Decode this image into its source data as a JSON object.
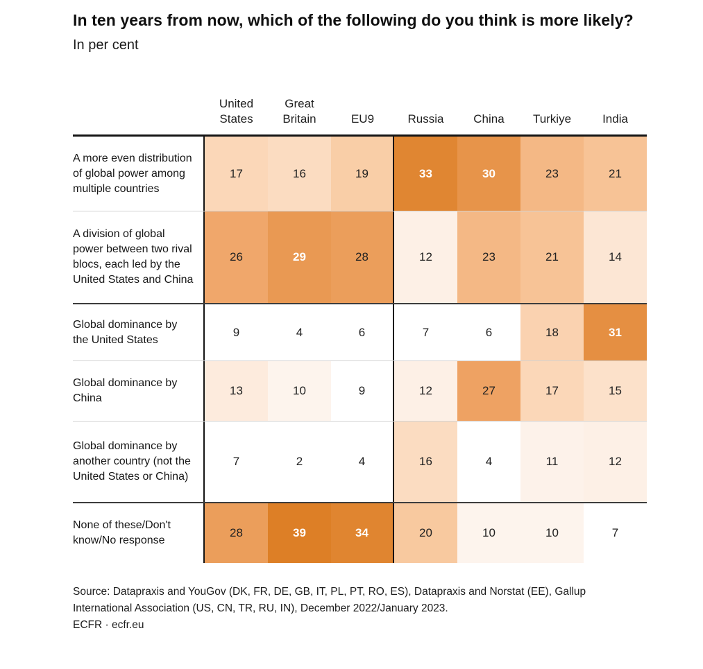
{
  "chart_data": {
    "type": "heatmap",
    "title": "In ten years from now, which of the following do you think is more likely?",
    "subtitle": "In per cent",
    "columns": [
      "United States",
      "Great Britain",
      "EU9",
      "Russia",
      "China",
      "Turkiye",
      "India"
    ],
    "rows": [
      {
        "label": "A more even distribution of global power among multiple countries",
        "values": [
          17,
          16,
          19,
          33,
          30,
          23,
          21
        ]
      },
      {
        "label": "A division of global power between two rival blocs, each led by the United States and China",
        "values": [
          26,
          29,
          28,
          12,
          23,
          21,
          14
        ]
      },
      {
        "label": "Global dominance by the United States",
        "values": [
          9,
          4,
          6,
          7,
          6,
          18,
          31
        ]
      },
      {
        "label": "Global dominance by China",
        "values": [
          13,
          10,
          9,
          12,
          27,
          17,
          15
        ]
      },
      {
        "label": "Global dominance by another country (not the United States or China)",
        "values": [
          7,
          2,
          4,
          16,
          4,
          11,
          12
        ]
      },
      {
        "label": "None of these/Don't know/No response",
        "values": [
          28,
          39,
          34,
          20,
          10,
          10,
          7
        ]
      }
    ],
    "value_unit": "per cent",
    "legend": "none",
    "grid": "group separators: dark rule above rows 3 and 6; light rules between other rows; heavy rule at top; vertical rules after row-label column and after EU9 column"
  },
  "heat_scale": {
    "description": "white at low values ramping to deep orange at high values",
    "stops": [
      {
        "value": 9,
        "color": "#ffffff"
      },
      {
        "value": 10,
        "color": "#fdf4ed"
      },
      {
        "value": 12,
        "color": "#fdf0e6"
      },
      {
        "value": 17,
        "color": "#fbd7b8"
      },
      {
        "value": 20,
        "color": "#f8c99f"
      },
      {
        "value": 26,
        "color": "#f0a76b"
      },
      {
        "value": 33,
        "color": "#e08632"
      },
      {
        "value": 39,
        "color": "#dd7f26"
      }
    ],
    "white_text_min": 29,
    "dark_text_color": "#222222",
    "white_text_color": "#ffffff"
  },
  "source": {
    "line1": "Source: Datapraxis and YouGov (DK, FR, DE, GB, IT, PL, PT, RO, ES), Datapraxis and Norstat (EE), Gallup International Association (US, CN, TR, RU, IN), December 2022/January 2023.",
    "line2": "ECFR · ecfr.eu"
  }
}
